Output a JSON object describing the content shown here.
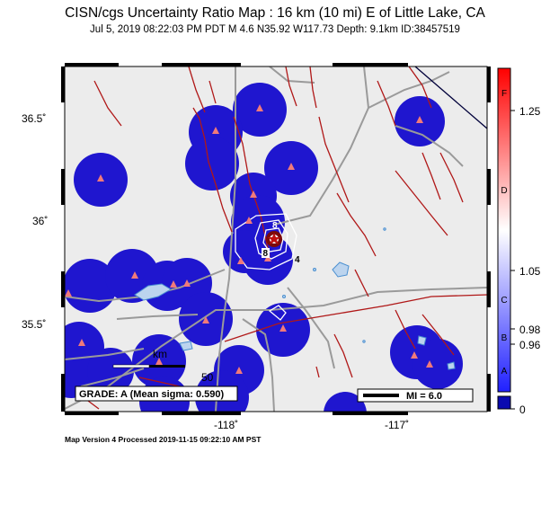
{
  "header": {
    "title": "CISN/cgs Uncertainty Ratio Map : 16 km (10 mi) E of Little Lake, CA",
    "subtitle": "Jul  5, 2019 08:22:03 PM PDT    M 4.6    N35.92 W117.73    Depth: 9.1km    ID:38457519"
  },
  "map": {
    "lat_labels": [
      "36.5˚",
      "36˚",
      "35.5˚"
    ],
    "lon_labels": [
      "-118˚",
      "-117˚"
    ],
    "contour_labels": [
      "8",
      "8",
      "4"
    ],
    "scale_bar": {
      "unit_label": "km",
      "value_label": "50"
    },
    "grade_box": "GRADE: A (Mean sigma: 0.590)",
    "mi_legend": "MI = 6.0",
    "colors": {
      "background": "#ececec",
      "station_circle": "#1f16cf",
      "station_marker": "#f07a7a",
      "fault": "#b01818",
      "road": "#9a9a9a",
      "water": "#4a8fd0",
      "epicenter": "#8a1010"
    }
  },
  "colorbar": {
    "letters": [
      "F",
      "D",
      "C",
      "B",
      "A"
    ],
    "values": [
      "1.25",
      "1.05",
      "0.98",
      "0.96",
      "0"
    ],
    "colors": {
      "top": "#ff0000",
      "middle": "#ffffff",
      "bottom": "#2020ff",
      "base": "#0a0ab0"
    }
  },
  "footer": {
    "text": "Map Version 4 Processed 2019-11-15 09:22:10 AM PST"
  }
}
